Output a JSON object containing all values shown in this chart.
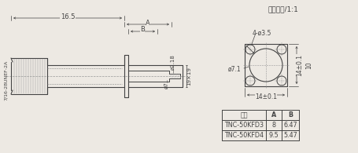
{
  "title": "实物尺寸/1:1",
  "bg_color": "#ede9e3",
  "line_color": "#444444",
  "dim_color": "#444444",
  "table_headers": [
    "类型",
    "A",
    "B"
  ],
  "table_rows": [
    [
      "TNC-50KFD3",
      "8",
      "6.47"
    ],
    [
      "TNC-50KFD4",
      "9.5",
      "5.47"
    ]
  ],
  "dim_16_5": "16.5",
  "dim_A": "A",
  "dim_B": "B",
  "dim_2_18": "ø2.18",
  "dim_7": "ø7",
  "dim_19x19": "19×19",
  "dim_thread": "7/16-28UNEF-2A",
  "dim_4_hole": "4-ø3.5",
  "dim_7_1": "ø7.1",
  "dim_14_01_h": "14±0.1",
  "dim_14_01_v": "14±0.1",
  "dim_10": "10"
}
